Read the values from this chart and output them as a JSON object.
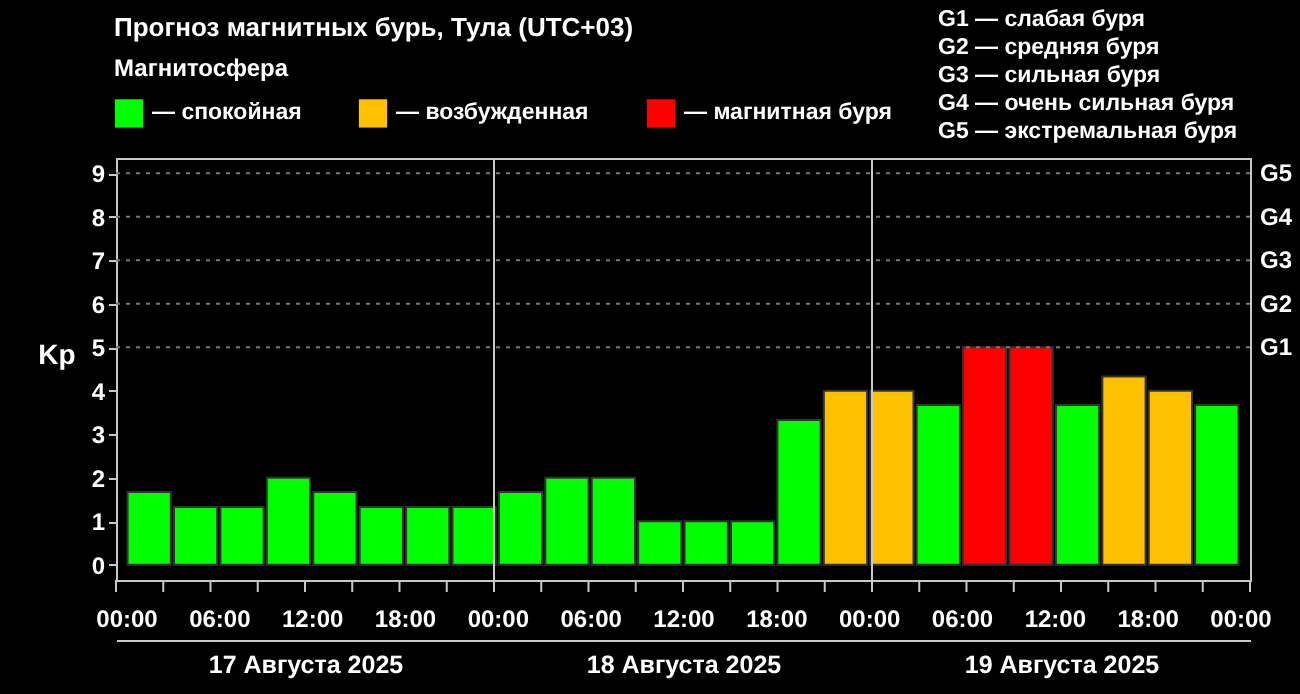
{
  "chart_data": {
    "type": "bar",
    "title": "Прогноз магнитных бурь, Тула (UTC+03)",
    "legend_title": "Магнитосфера",
    "ylabel": "Kp",
    "legend": "top left",
    "x": [
      "2025-08-17T01:30",
      "2025-08-17T04:30",
      "2025-08-17T07:30",
      "2025-08-17T10:30",
      "2025-08-17T13:30",
      "2025-08-17T16:30",
      "2025-08-17T19:30",
      "2025-08-17T22:30",
      "2025-08-18T01:30",
      "2025-08-18T04:30",
      "2025-08-18T07:30",
      "2025-08-18T10:30",
      "2025-08-18T13:30",
      "2025-08-18T16:30",
      "2025-08-18T19:30",
      "2025-08-18T22:30",
      "2025-08-19T01:30",
      "2025-08-19T04:30",
      "2025-08-19T07:30",
      "2025-08-19T10:30",
      "2025-08-19T13:30",
      "2025-08-19T16:30",
      "2025-08-19T19:30",
      "2025-08-19T22:30"
    ],
    "series": [
      {
        "name": "— спокойная",
        "color": "#00ff00",
        "values": [
          1.67,
          1.33,
          1.33,
          2,
          1.67,
          1.33,
          1.33,
          1.33,
          1.67,
          2,
          2,
          1,
          1,
          1,
          3.33,
          null,
          null,
          3.67,
          null,
          null,
          3.67,
          null,
          null,
          3.67
        ]
      },
      {
        "name": "— возбужденная",
        "color": "#ffc000",
        "values": [
          null,
          null,
          null,
          null,
          null,
          null,
          null,
          null,
          null,
          null,
          null,
          null,
          null,
          null,
          null,
          4,
          4,
          null,
          null,
          null,
          null,
          4.33,
          4,
          null
        ]
      },
      {
        "name": "— магнитная буря",
        "color": "#ff0000",
        "values": [
          null,
          null,
          null,
          null,
          null,
          null,
          null,
          null,
          null,
          null,
          null,
          null,
          null,
          null,
          null,
          null,
          null,
          null,
          5,
          5,
          null,
          null,
          null,
          null
        ]
      }
    ],
    "xlim": [
      "2025-08-17T00:00",
      "2025-08-20T00:00"
    ],
    "xticks": [
      {
        "value": "2025-08-17T00:00",
        "label": "00:00"
      },
      {
        "value": "2025-08-17T03:00",
        "label": null
      },
      {
        "value": "2025-08-17T06:00",
        "label": "06:00"
      },
      {
        "value": "2025-08-17T09:00",
        "label": null
      },
      {
        "value": "2025-08-17T12:00",
        "label": "12:00"
      },
      {
        "value": "2025-08-17T15:00",
        "label": null
      },
      {
        "value": "2025-08-17T18:00",
        "label": "18:00"
      },
      {
        "value": "2025-08-17T21:00",
        "label": null
      },
      {
        "value": "2025-08-18T00:00",
        "label": "00:00"
      },
      {
        "value": "2025-08-18T03:00",
        "label": null
      },
      {
        "value": "2025-08-18T06:00",
        "label": "06:00"
      },
      {
        "value": "2025-08-18T09:00",
        "label": null
      },
      {
        "value": "2025-08-18T12:00",
        "label": "12:00"
      },
      {
        "value": "2025-08-18T15:00",
        "label": null
      },
      {
        "value": "2025-08-18T18:00",
        "label": "18:00"
      },
      {
        "value": "2025-08-18T21:00",
        "label": null
      },
      {
        "value": "2025-08-19T00:00",
        "label": "00:00"
      },
      {
        "value": "2025-08-19T03:00",
        "label": null
      },
      {
        "value": "2025-08-19T06:00",
        "label": "06:00"
      },
      {
        "value": "2025-08-19T09:00",
        "label": null
      },
      {
        "value": "2025-08-19T12:00",
        "label": "12:00"
      },
      {
        "value": "2025-08-19T15:00",
        "label": null
      },
      {
        "value": "2025-08-19T18:00",
        "label": "18:00"
      },
      {
        "value": "2025-08-19T21:00",
        "label": null
      },
      {
        "value": "2025-08-20T00:00",
        "label": "00:00"
      }
    ],
    "x2lim": [
      "2025-08-17T00:00",
      "2025-08-20T00:00"
    ],
    "x2ticks": [
      {
        "value": "2025-08-17T12:00",
        "label": "17 Августа 2025"
      },
      {
        "value": "2025-08-18T12:00",
        "label": "18 Августа 2025"
      },
      {
        "value": "2025-08-19T12:00",
        "label": "19 Августа 2025"
      }
    ],
    "ylim": [
      -0.35,
      9.35
    ],
    "yticks": [
      0,
      1,
      2,
      3,
      4,
      5,
      6,
      7,
      8,
      9
    ],
    "ref_lines": [
      {
        "axis": "x",
        "value": "2025-08-18T00:00",
        "color": "#c8c8c8"
      },
      {
        "axis": "x",
        "value": "2025-08-19T00:00",
        "color": "#c8c8c8"
      },
      {
        "axis": "y",
        "value": 5,
        "label": "G1",
        "color": "#777777",
        "line_style": "dotted"
      },
      {
        "axis": "y",
        "value": 6,
        "label": "G2",
        "color": "#777777",
        "line_style": "dotted"
      },
      {
        "axis": "y",
        "value": 7,
        "label": "G3",
        "color": "#777777",
        "line_style": "dotted"
      },
      {
        "axis": "y",
        "value": 8,
        "label": "G4",
        "color": "#777777",
        "line_style": "dotted"
      },
      {
        "axis": "y",
        "value": 9,
        "label": "G5",
        "color": "#777777",
        "line_style": "dotted"
      }
    ],
    "annotations": [
      "G1 — слабая буря",
      "G2 — средняя буря",
      "G3 — сильная буря",
      "G4 — очень сильная буря",
      "G5 — экстремальная буря"
    ]
  }
}
